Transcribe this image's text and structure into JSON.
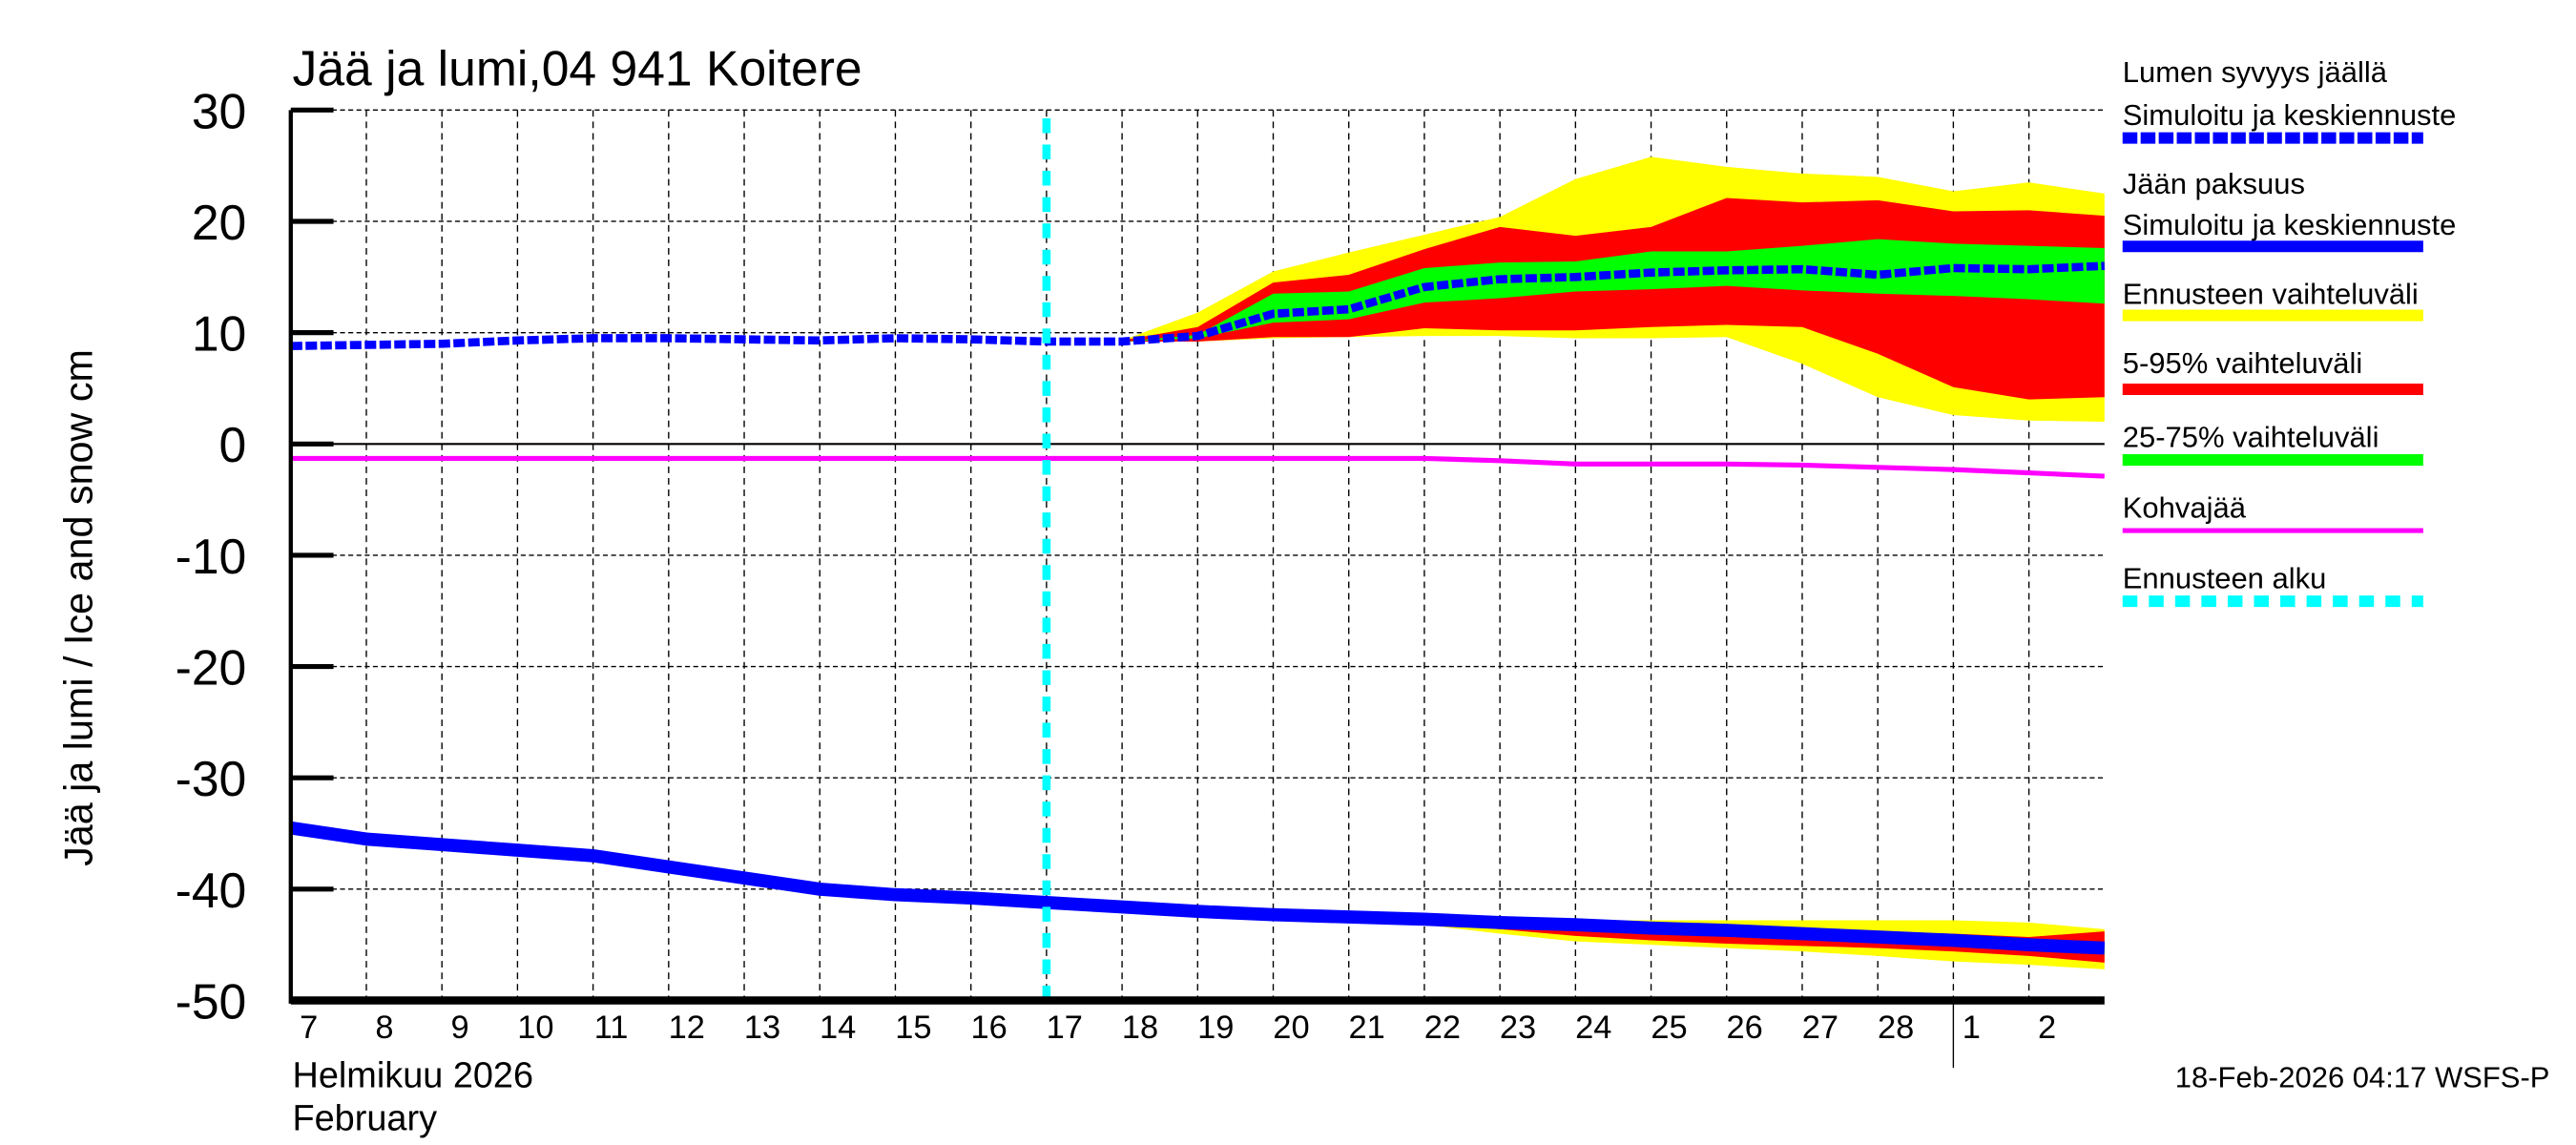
{
  "chart_data": {
    "type": "area",
    "title": "Jää ja lumi,04 941 Koitere",
    "ylabel": "Jää ja lumi / Ice and snow    cm",
    "ylim": [
      -50,
      30
    ],
    "yticks": [
      30,
      20,
      10,
      0,
      -10,
      -20,
      -30,
      -40,
      -50
    ],
    "xlim": [
      "2026-02-07",
      "2026-03-03"
    ],
    "xtick_labels": [
      "7",
      "8",
      "9",
      "10",
      "11",
      "12",
      "13",
      "14",
      "15",
      "16",
      "17",
      "18",
      "19",
      "20",
      "21",
      "22",
      "23",
      "24",
      "25",
      "26",
      "27",
      "28",
      "1",
      "2"
    ],
    "xlabel_month_fi": "Helmikuu  2026",
    "xlabel_month_en": "February",
    "grid": true,
    "legend_placement": "right",
    "forecast_start": "2026-02-17",
    "footer": "18-Feb-2026 04:17 WSFS-P",
    "colors": {
      "snow": "#0000ff",
      "ice": "#0000ff",
      "range": "#ffff00",
      "p5_95": "#ff0000",
      "p25_75": "#00ff00",
      "slush": "#ff00ff",
      "forecast_start": "#00ffff"
    },
    "legend": [
      {
        "label1": "Lumen syvyys jäällä",
        "label2": "Simuloitu ja keskiennuste",
        "style": "dashed",
        "color": "#0000ff"
      },
      {
        "label1": "Jään paksuus",
        "label2": "Simuloitu ja keskiennuste",
        "style": "solid",
        "color": "#0000ff"
      },
      {
        "label1": "Ennusteen vaihteluväli",
        "style": "solid",
        "color": "#ffff00"
      },
      {
        "label1": "5-95% vaihteluväli",
        "style": "solid",
        "color": "#ff0000"
      },
      {
        "label1": "25-75% vaihteluväli",
        "style": "solid",
        "color": "#00ff00"
      },
      {
        "label1": "Kohvajää",
        "style": "thin",
        "color": "#ff00ff"
      },
      {
        "label1": "Ennusteen alku",
        "style": "dashed",
        "color": "#00ffff"
      }
    ],
    "x_all": [
      "2026-02-07",
      "2026-02-08",
      "2026-02-09",
      "2026-02-10",
      "2026-02-11",
      "2026-02-12",
      "2026-02-13",
      "2026-02-14",
      "2026-02-15",
      "2026-02-16",
      "2026-02-17",
      "2026-02-18",
      "2026-02-19",
      "2026-02-20",
      "2026-02-21",
      "2026-02-22",
      "2026-02-23",
      "2026-02-24",
      "2026-02-25",
      "2026-02-26",
      "2026-02-27",
      "2026-02-28",
      "2026-03-01",
      "2026-03-02",
      "2026-03-03"
    ],
    "snow_depth": [
      8.8,
      8.9,
      9.0,
      9.3,
      9.5,
      9.5,
      9.4,
      9.3,
      9.5,
      9.4,
      9.2,
      9.2,
      9.7,
      11.7,
      12.1,
      14.1,
      14.8,
      15.0,
      15.4,
      15.6,
      15.7,
      15.2,
      15.8,
      15.7,
      16.0
    ],
    "ice_thickness": [
      -34.5,
      -35.5,
      -36,
      -36.5,
      -37,
      -38,
      -39,
      -40,
      -40.5,
      -40.8,
      -41.2,
      -41.6,
      -42,
      -42.3,
      -42.5,
      -42.7,
      -43,
      -43.2,
      -43.5,
      -43.7,
      -44,
      -44.3,
      -44.6,
      -45,
      -45.3
    ],
    "slush_ice": [
      -1.3,
      -1.3,
      -1.3,
      -1.3,
      -1.3,
      -1.3,
      -1.3,
      -1.3,
      -1.3,
      -1.3,
      -1.3,
      -1.3,
      -1.3,
      -1.3,
      -1.3,
      -1.3,
      -1.5,
      -1.8,
      -1.8,
      -1.8,
      -1.9,
      -2.1,
      -2.3,
      -2.6,
      -2.9
    ],
    "snow_bands": {
      "x": [
        "2026-02-18",
        "2026-02-19",
        "2026-02-20",
        "2026-02-21",
        "2026-02-22",
        "2026-02-23",
        "2026-02-24",
        "2026-02-25",
        "2026-02-26",
        "2026-02-27",
        "2026-02-28",
        "2026-03-01",
        "2026-03-02",
        "2026-03-03"
      ],
      "range_upper": [
        9.3,
        11.8,
        15.5,
        17.2,
        18.8,
        20.4,
        23.8,
        25.8,
        24.9,
        24.3,
        24.0,
        22.7,
        23.5,
        22.5
      ],
      "range_lower": [
        9.2,
        9.2,
        9.5,
        9.6,
        9.7,
        9.7,
        9.5,
        9.5,
        9.6,
        7.2,
        4.2,
        2.6,
        2.1,
        2.0
      ],
      "p95": [
        9.3,
        10.5,
        14.5,
        15.2,
        17.5,
        19.5,
        18.7,
        19.5,
        22.1,
        21.7,
        21.9,
        20.9,
        21.0,
        20.5
      ],
      "p5": [
        9.2,
        9.2,
        9.6,
        9.6,
        10.4,
        10.2,
        10.2,
        10.5,
        10.7,
        10.5,
        8.1,
        5.1,
        4.0,
        4.2
      ],
      "p75": [
        9.2,
        9.8,
        13.5,
        13.7,
        15.8,
        16.3,
        16.4,
        17.3,
        17.3,
        17.8,
        18.4,
        18.0,
        17.8,
        17.6
      ],
      "p25": [
        9.2,
        9.5,
        10.9,
        11.2,
        12.7,
        13.1,
        13.7,
        13.9,
        14.2,
        13.8,
        13.5,
        13.3,
        13.0,
        12.6
      ]
    },
    "ice_bands": {
      "x": [
        "2026-02-21",
        "2026-02-22",
        "2026-02-23",
        "2026-02-24",
        "2026-02-25",
        "2026-02-26",
        "2026-02-27",
        "2026-02-28",
        "2026-03-01",
        "2026-03-02",
        "2026-03-03"
      ],
      "range_upper": [
        -42.5,
        -42.6,
        -42.7,
        -42.8,
        -42.8,
        -42.8,
        -42.8,
        -42.8,
        -42.8,
        -43.0,
        -43.6
      ],
      "range_lower": [
        -42.5,
        -43.2,
        -44,
        -44.7,
        -45,
        -45.3,
        -45.6,
        -46,
        -46.5,
        -46.8,
        -47.2
      ],
      "p95": [
        -42.5,
        -42.7,
        -42.9,
        -43.1,
        -43.3,
        -43.5,
        -43.7,
        -43.9,
        -44.0,
        -44.3,
        -43.8
      ],
      "p5": [
        -42.5,
        -43,
        -43.6,
        -44.2,
        -44.6,
        -44.9,
        -45.1,
        -45.3,
        -45.6,
        -46,
        -46.6
      ],
      "p75": [
        -42.5,
        -42.7,
        -43,
        -43.2,
        -43.5,
        -43.7,
        -44,
        -44.3,
        -44.6,
        -44.9,
        -44.8
      ],
      "p25": [
        -42.5,
        -42.8,
        -43.1,
        -43.4,
        -43.7,
        -44,
        -44.3,
        -44.6,
        -44.9,
        -45.3,
        -45.8
      ]
    }
  }
}
